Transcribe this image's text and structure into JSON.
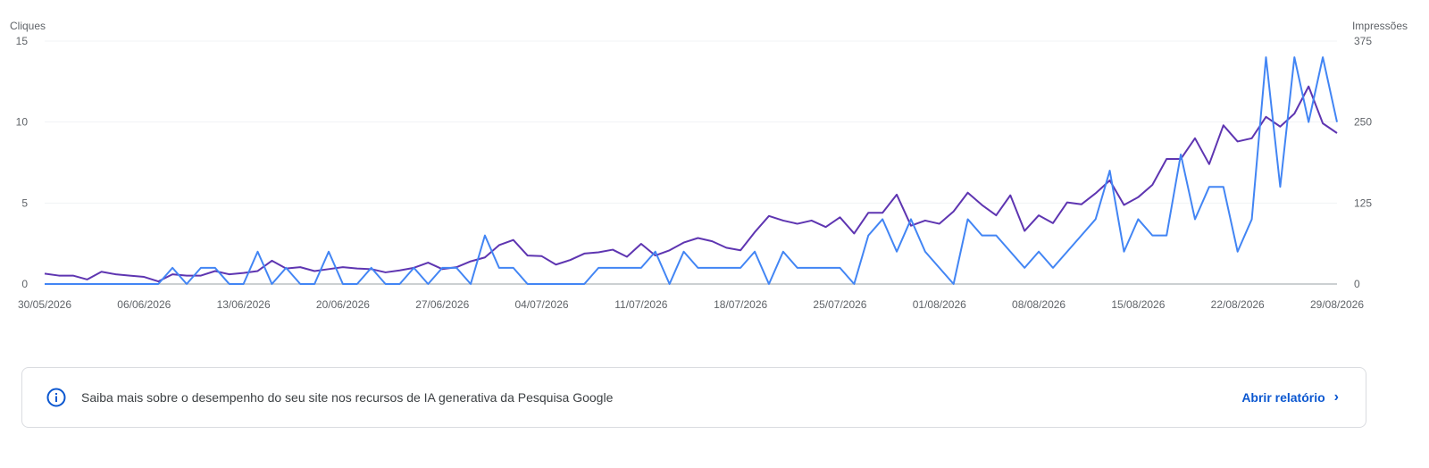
{
  "chart_data": {
    "type": "line",
    "left_axis_title": "Cliques",
    "right_axis_title": "Impressões",
    "y_left": {
      "min": 0,
      "max": 15,
      "ticks": [
        "0",
        "5",
        "10",
        "15"
      ]
    },
    "y_right": {
      "min": 0,
      "max": 375,
      "ticks": [
        "0",
        "125",
        "250",
        "375"
      ]
    },
    "x_tick_labels": [
      "30/05/2026",
      "06/06/2026",
      "13/06/2026",
      "20/06/2026",
      "27/06/2026",
      "04/07/2026",
      "11/07/2026",
      "18/07/2026",
      "25/07/2026",
      "01/08/2026",
      "08/08/2026",
      "15/08/2026",
      "22/08/2026",
      "29/08/2026"
    ],
    "start_date": "2026-05-30",
    "days": 92,
    "grid": true,
    "series": [
      {
        "axis": "left",
        "color": "#4285f4",
        "values": [
          0,
          0,
          0,
          0,
          0,
          0,
          0,
          0,
          0,
          1,
          0,
          1,
          1,
          0,
          0,
          2,
          0,
          1,
          0,
          0,
          2,
          0,
          0,
          1,
          0,
          0,
          1,
          0,
          1,
          1,
          0,
          3,
          1,
          1,
          0,
          0,
          0,
          0,
          0,
          1,
          1,
          1,
          1,
          2,
          0,
          2,
          1,
          1,
          1,
          1,
          2,
          0,
          2,
          1,
          1,
          1,
          1,
          0,
          3,
          4,
          2,
          4,
          2,
          1,
          0,
          4,
          3,
          3,
          2,
          1,
          2,
          1,
          2,
          3,
          4,
          7,
          2,
          4,
          3,
          3,
          8,
          4,
          6,
          6,
          2,
          4,
          14,
          6,
          14,
          10,
          14,
          10
        ]
      },
      {
        "axis": "right",
        "color": "#5e35b1",
        "values": [
          16,
          13,
          13,
          7,
          19,
          15,
          13,
          11,
          4,
          15,
          13,
          13,
          20,
          15,
          17,
          20,
          36,
          24,
          26,
          20,
          23,
          26,
          24,
          23,
          18,
          21,
          25,
          33,
          23,
          26,
          35,
          41,
          60,
          68,
          44,
          43,
          30,
          37,
          47,
          49,
          53,
          42,
          62,
          44,
          52,
          64,
          71,
          66,
          56,
          52,
          80,
          105,
          98,
          93,
          98,
          88,
          103,
          78,
          110,
          110,
          138,
          90,
          98,
          93,
          112,
          141,
          122,
          106,
          137,
          82,
          106,
          94,
          126,
          123,
          140,
          160,
          122,
          134,
          153,
          193,
          193,
          225,
          185,
          245,
          220,
          225,
          258,
          243,
          263,
          305,
          248,
          233
        ]
      }
    ]
  },
  "info_card": {
    "text": "Saiba mais sobre o desempenho do seu site nos recursos de IA generativa da Pesquisa Google",
    "link": "Abrir relatório",
    "icon": "info-icon",
    "link_icon": "chevron-right-icon",
    "accent_color": "#0b57d0"
  }
}
